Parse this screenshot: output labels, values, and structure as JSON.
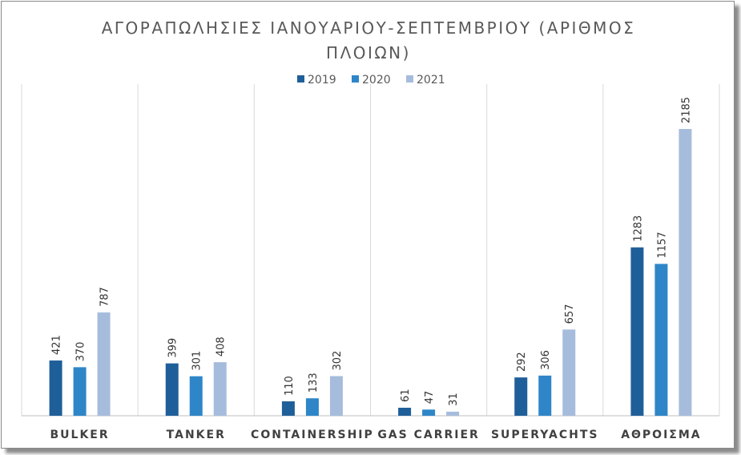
{
  "chart_data": {
    "type": "bar",
    "title": "ΑΓΟΡΑΠΩΛΗΣΙΕΣ ΙΑΝΟΥΑΡΙΟΥ-ΣΕΠΤΕΜΒΡΙΟΥ (ΑΡΙΘΜΟΣ ΠΛΟΙΩΝ)",
    "title_lines": [
      "ΑΓΟΡΑΠΩΛΗΣΙΕΣ ΙΑΝΟΥΑΡΙΟΥ-ΣΕΠΤΕΜΒΡΙΟΥ (ΑΡΙΘΜΟΣ",
      "ΠΛΟΙΩΝ)"
    ],
    "categories": [
      "BULKER",
      "TANKER",
      "CONTAINERSHIP",
      "GAS CARRIER",
      "SUPERYACHTS",
      "ΑΘΡΟΙΣΜΑ"
    ],
    "series": [
      {
        "name": "2019",
        "color": "#1f5f99",
        "values": [
          421,
          399,
          110,
          61,
          292,
          1283
        ]
      },
      {
        "name": "2020",
        "color": "#2e86c8",
        "values": [
          370,
          301,
          133,
          47,
          306,
          1157
        ]
      },
      {
        "name": "2021",
        "color": "#a6bcdc",
        "values": [
          787,
          408,
          302,
          31,
          657,
          2185
        ]
      }
    ],
    "ylim": [
      0,
      2185
    ],
    "legend": "top",
    "grid": "vertical separators between categories",
    "data_labels": "rotated, above bars",
    "xlabel": "",
    "ylabel": ""
  }
}
